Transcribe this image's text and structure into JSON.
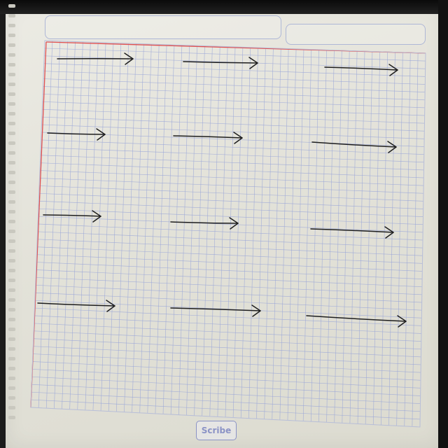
{
  "scene": {
    "description_type": "photo",
    "paper_color": "#e6e5dc",
    "grid_color": "#9aa6d8",
    "margin_line_color": "#e05050",
    "ink_color": "#1e1e1e"
  },
  "header_boxes": [
    "",
    ""
  ],
  "brand": {
    "logo_text": "Scribe"
  },
  "arrows": {
    "rows": 4,
    "columns": 3,
    "count": 12
  }
}
